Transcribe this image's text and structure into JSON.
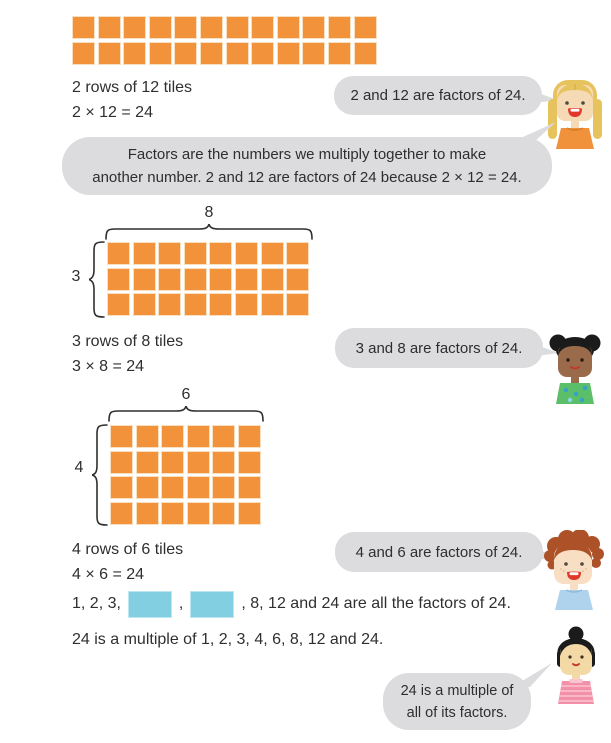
{
  "colors": {
    "tile_orange": "#F2923B",
    "bubble_gray": "#DCDCDE",
    "answer_blue": "#82CFE2",
    "text": "#2F2F2F"
  },
  "arrays": [
    {
      "rows": 2,
      "cols": 12,
      "col_brace_label": "",
      "row_brace_label": ""
    },
    {
      "rows": 3,
      "cols": 8,
      "col_brace_label": "8",
      "row_brace_label": "3"
    },
    {
      "rows": 4,
      "cols": 6,
      "col_brace_label": "6",
      "row_brace_label": "4"
    }
  ],
  "captions": [
    {
      "line1": "2 rows of 12 tiles",
      "line2": "2 × 12 = 24"
    },
    {
      "line1": "3 rows of 8 tiles",
      "line2": "3 × 8 = 24"
    },
    {
      "line1": "4 rows of 6 tiles",
      "line2": "4 × 6 = 24"
    }
  ],
  "bubbles": {
    "b1": "2 and 12 are factors of 24.",
    "b2_line1": "Factors are the numbers we multiply together to make",
    "b2_line2": "another number. 2 and 12 are factors of 24 because 2 × 12 = 24.",
    "b3": "3 and 8 are factors of 24.",
    "b4": "4 and 6 are factors of 24.",
    "b5_line1": "24 is a multiple of",
    "b5_line2": "all of its factors."
  },
  "fill_in_line": {
    "prefix": "1, 2, 3,",
    "separator": ",",
    "suffix": ", 8, 12 and 24 are all the factors of 24."
  },
  "multiple_line": "24 is a multiple of 1, 2, 3, 4, 6, 8, 12 and 24.",
  "characters": [
    "blonde girl with braids",
    "girl with afro puffs",
    "boy with curly red hair",
    "girl with hair bun"
  ]
}
